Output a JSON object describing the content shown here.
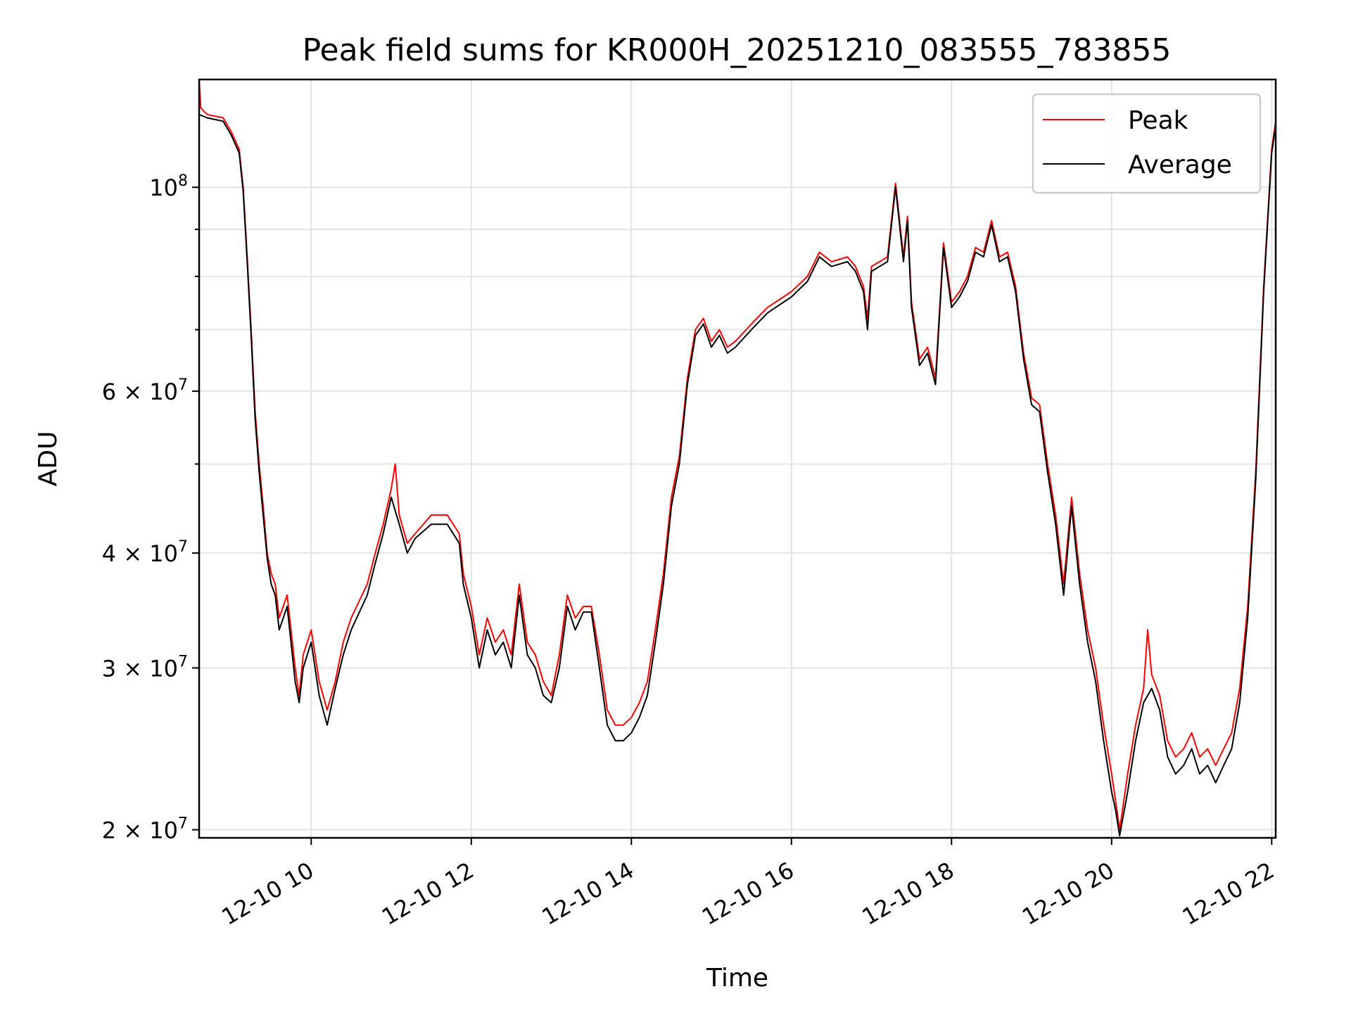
{
  "chart_data": {
    "type": "line",
    "title": "Peak field sums for KR000H_20251210_083555_783855",
    "xlabel": "Time",
    "ylabel": "ADU",
    "yscale": "log",
    "xlim": [
      8.6,
      22.05
    ],
    "ylim": [
      19600000,
      131000000
    ],
    "grid": true,
    "legend_position": "top-right",
    "x_ticks": [
      {
        "value": 10,
        "label": "12-10 10"
      },
      {
        "value": 12,
        "label": "12-10 12"
      },
      {
        "value": 14,
        "label": "12-10 14"
      },
      {
        "value": 16,
        "label": "12-10 16"
      },
      {
        "value": 18,
        "label": "12-10 18"
      },
      {
        "value": 20,
        "label": "12-10 20"
      },
      {
        "value": 22,
        "label": "12-10 22"
      }
    ],
    "y_ticks": [
      {
        "value": 100000000,
        "mantissa": "",
        "exp": "8"
      },
      {
        "value": 60000000,
        "mantissa": "6",
        "exp": "7"
      },
      {
        "value": 40000000,
        "mantissa": "4",
        "exp": "7"
      },
      {
        "value": 30000000,
        "mantissa": "3",
        "exp": "7"
      },
      {
        "value": 20000000,
        "mantissa": "2",
        "exp": "7"
      }
    ],
    "y_minor_gridlines": [
      90000000,
      80000000,
      70000000,
      50000000
    ],
    "series": [
      {
        "name": "Peak",
        "color": "#ff0000",
        "points": [
          [
            8.6,
            131000000
          ],
          [
            8.62,
            122000000
          ],
          [
            8.7,
            120000000
          ],
          [
            8.9,
            119000000
          ],
          [
            9.0,
            115000000
          ],
          [
            9.1,
            110000000
          ],
          [
            9.15,
            100000000
          ],
          [
            9.2,
            84000000
          ],
          [
            9.25,
            70000000
          ],
          [
            9.3,
            57000000
          ],
          [
            9.35,
            50000000
          ],
          [
            9.4,
            45000000
          ],
          [
            9.45,
            40000000
          ],
          [
            9.5,
            38000000
          ],
          [
            9.55,
            37000000
          ],
          [
            9.6,
            34000000
          ],
          [
            9.7,
            36000000
          ],
          [
            9.8,
            30000000
          ],
          [
            9.85,
            28000000
          ],
          [
            9.9,
            31000000
          ],
          [
            10.0,
            33000000
          ],
          [
            10.1,
            29000000
          ],
          [
            10.2,
            27000000
          ],
          [
            10.3,
            29000000
          ],
          [
            10.4,
            32000000
          ],
          [
            10.5,
            34000000
          ],
          [
            10.7,
            37000000
          ],
          [
            10.8,
            40000000
          ],
          [
            10.9,
            43000000
          ],
          [
            11.0,
            47000000
          ],
          [
            11.05,
            50000000
          ],
          [
            11.1,
            44000000
          ],
          [
            11.2,
            41000000
          ],
          [
            11.3,
            42000000
          ],
          [
            11.5,
            44000000
          ],
          [
            11.7,
            44000000
          ],
          [
            11.85,
            42000000
          ],
          [
            11.9,
            38000000
          ],
          [
            12.0,
            35000000
          ],
          [
            12.1,
            31000000
          ],
          [
            12.2,
            34000000
          ],
          [
            12.3,
            32000000
          ],
          [
            12.4,
            33000000
          ],
          [
            12.5,
            31000000
          ],
          [
            12.6,
            37000000
          ],
          [
            12.7,
            32000000
          ],
          [
            12.8,
            31000000
          ],
          [
            12.9,
            29000000
          ],
          [
            13.0,
            28000000
          ],
          [
            13.1,
            31000000
          ],
          [
            13.2,
            36000000
          ],
          [
            13.3,
            34000000
          ],
          [
            13.4,
            35000000
          ],
          [
            13.5,
            35000000
          ],
          [
            13.6,
            31000000
          ],
          [
            13.7,
            27000000
          ],
          [
            13.8,
            26000000
          ],
          [
            13.9,
            26000000
          ],
          [
            14.0,
            26500000
          ],
          [
            14.1,
            27500000
          ],
          [
            14.2,
            29000000
          ],
          [
            14.3,
            33000000
          ],
          [
            14.4,
            38000000
          ],
          [
            14.5,
            46000000
          ],
          [
            14.6,
            51000000
          ],
          [
            14.7,
            62000000
          ],
          [
            14.8,
            70000000
          ],
          [
            14.9,
            72000000
          ],
          [
            15.0,
            68000000
          ],
          [
            15.1,
            70000000
          ],
          [
            15.2,
            67000000
          ],
          [
            15.3,
            68000000
          ],
          [
            15.5,
            71000000
          ],
          [
            15.7,
            74000000
          ],
          [
            16.0,
            77000000
          ],
          [
            16.2,
            80000000
          ],
          [
            16.35,
            85000000
          ],
          [
            16.5,
            83000000
          ],
          [
            16.7,
            84000000
          ],
          [
            16.8,
            82000000
          ],
          [
            16.9,
            78000000
          ],
          [
            16.95,
            72000000
          ],
          [
            17.0,
            82000000
          ],
          [
            17.1,
            83000000
          ],
          [
            17.2,
            84000000
          ],
          [
            17.3,
            101000000
          ],
          [
            17.4,
            84000000
          ],
          [
            17.45,
            93000000
          ],
          [
            17.5,
            75000000
          ],
          [
            17.6,
            65000000
          ],
          [
            17.7,
            67000000
          ],
          [
            17.8,
            62000000
          ],
          [
            17.9,
            87000000
          ],
          [
            18.0,
            75000000
          ],
          [
            18.1,
            77000000
          ],
          [
            18.2,
            80000000
          ],
          [
            18.3,
            86000000
          ],
          [
            18.4,
            85000000
          ],
          [
            18.5,
            92000000
          ],
          [
            18.6,
            84000000
          ],
          [
            18.7,
            85000000
          ],
          [
            18.8,
            78000000
          ],
          [
            18.9,
            66000000
          ],
          [
            19.0,
            59000000
          ],
          [
            19.1,
            58000000
          ],
          [
            19.2,
            50000000
          ],
          [
            19.3,
            44000000
          ],
          [
            19.4,
            37000000
          ],
          [
            19.5,
            46000000
          ],
          [
            19.6,
            38000000
          ],
          [
            19.7,
            33000000
          ],
          [
            19.8,
            30000000
          ],
          [
            19.9,
            26000000
          ],
          [
            20.0,
            23000000
          ],
          [
            20.05,
            21500000
          ],
          [
            20.1,
            20000000
          ],
          [
            20.2,
            23000000
          ],
          [
            20.3,
            26000000
          ],
          [
            20.4,
            28500000
          ],
          [
            20.45,
            33000000
          ],
          [
            20.5,
            29500000
          ],
          [
            20.6,
            28000000
          ],
          [
            20.7,
            25000000
          ],
          [
            20.8,
            24000000
          ],
          [
            20.9,
            24500000
          ],
          [
            21.0,
            25500000
          ],
          [
            21.1,
            24000000
          ],
          [
            21.2,
            24500000
          ],
          [
            21.3,
            23500000
          ],
          [
            21.4,
            24500000
          ],
          [
            21.5,
            25500000
          ],
          [
            21.6,
            28500000
          ],
          [
            21.7,
            35000000
          ],
          [
            21.8,
            49000000
          ],
          [
            21.9,
            78000000
          ],
          [
            22.0,
            110000000
          ],
          [
            22.05,
            118000000
          ]
        ]
      },
      {
        "name": "Average",
        "color": "#000000",
        "points": [
          [
            8.6,
            120000000
          ],
          [
            8.7,
            119000000
          ],
          [
            8.9,
            118000000
          ],
          [
            9.0,
            114000000
          ],
          [
            9.1,
            109000000
          ],
          [
            9.15,
            99000000
          ],
          [
            9.2,
            83000000
          ],
          [
            9.25,
            69000000
          ],
          [
            9.3,
            56000000
          ],
          [
            9.35,
            49000000
          ],
          [
            9.4,
            44000000
          ],
          [
            9.45,
            39500000
          ],
          [
            9.5,
            37000000
          ],
          [
            9.55,
            36000000
          ],
          [
            9.6,
            33000000
          ],
          [
            9.7,
            35000000
          ],
          [
            9.8,
            29000000
          ],
          [
            9.85,
            27500000
          ],
          [
            9.9,
            30000000
          ],
          [
            10.0,
            32000000
          ],
          [
            10.1,
            28000000
          ],
          [
            10.2,
            26000000
          ],
          [
            10.3,
            28500000
          ],
          [
            10.4,
            31000000
          ],
          [
            10.5,
            33000000
          ],
          [
            10.7,
            36000000
          ],
          [
            10.8,
            39000000
          ],
          [
            10.9,
            42000000
          ],
          [
            11.0,
            46000000
          ],
          [
            11.1,
            43000000
          ],
          [
            11.2,
            40000000
          ],
          [
            11.3,
            41500000
          ],
          [
            11.5,
            43000000
          ],
          [
            11.7,
            43000000
          ],
          [
            11.85,
            41000000
          ],
          [
            11.9,
            37000000
          ],
          [
            12.0,
            34000000
          ],
          [
            12.1,
            30000000
          ],
          [
            12.2,
            33000000
          ],
          [
            12.3,
            31000000
          ],
          [
            12.4,
            32000000
          ],
          [
            12.5,
            30000000
          ],
          [
            12.6,
            36000000
          ],
          [
            12.7,
            31000000
          ],
          [
            12.8,
            30000000
          ],
          [
            12.9,
            28000000
          ],
          [
            13.0,
            27500000
          ],
          [
            13.1,
            30000000
          ],
          [
            13.2,
            35000000
          ],
          [
            13.3,
            33000000
          ],
          [
            13.4,
            34500000
          ],
          [
            13.5,
            34500000
          ],
          [
            13.6,
            30000000
          ],
          [
            13.7,
            26000000
          ],
          [
            13.8,
            25000000
          ],
          [
            13.9,
            25000000
          ],
          [
            14.0,
            25500000
          ],
          [
            14.1,
            26500000
          ],
          [
            14.2,
            28000000
          ],
          [
            14.3,
            32000000
          ],
          [
            14.4,
            37000000
          ],
          [
            14.5,
            45000000
          ],
          [
            14.6,
            50000000
          ],
          [
            14.7,
            61000000
          ],
          [
            14.8,
            69000000
          ],
          [
            14.9,
            71000000
          ],
          [
            15.0,
            67000000
          ],
          [
            15.1,
            69000000
          ],
          [
            15.2,
            66000000
          ],
          [
            15.3,
            67000000
          ],
          [
            15.5,
            70000000
          ],
          [
            15.7,
            73000000
          ],
          [
            16.0,
            76000000
          ],
          [
            16.2,
            79000000
          ],
          [
            16.35,
            84000000
          ],
          [
            16.5,
            82000000
          ],
          [
            16.7,
            83000000
          ],
          [
            16.8,
            81000000
          ],
          [
            16.9,
            77000000
          ],
          [
            16.95,
            70000000
          ],
          [
            17.0,
            81000000
          ],
          [
            17.1,
            82000000
          ],
          [
            17.2,
            83000000
          ],
          [
            17.3,
            100000000
          ],
          [
            17.4,
            83000000
          ],
          [
            17.45,
            92000000
          ],
          [
            17.5,
            74000000
          ],
          [
            17.6,
            64000000
          ],
          [
            17.7,
            66000000
          ],
          [
            17.8,
            61000000
          ],
          [
            17.9,
            86000000
          ],
          [
            18.0,
            74000000
          ],
          [
            18.1,
            76000000
          ],
          [
            18.2,
            79000000
          ],
          [
            18.3,
            85000000
          ],
          [
            18.4,
            84000000
          ],
          [
            18.5,
            91000000
          ],
          [
            18.6,
            83000000
          ],
          [
            18.7,
            84000000
          ],
          [
            18.8,
            77000000
          ],
          [
            18.9,
            65000000
          ],
          [
            19.0,
            58000000
          ],
          [
            19.1,
            57000000
          ],
          [
            19.2,
            49000000
          ],
          [
            19.3,
            43000000
          ],
          [
            19.4,
            36000000
          ],
          [
            19.5,
            45000000
          ],
          [
            19.6,
            37000000
          ],
          [
            19.7,
            32000000
          ],
          [
            19.8,
            29000000
          ],
          [
            19.9,
            25000000
          ],
          [
            20.0,
            22000000
          ],
          [
            20.05,
            21000000
          ],
          [
            20.1,
            19700000
          ],
          [
            20.2,
            22000000
          ],
          [
            20.3,
            25000000
          ],
          [
            20.4,
            27500000
          ],
          [
            20.5,
            28500000
          ],
          [
            20.6,
            27000000
          ],
          [
            20.7,
            24000000
          ],
          [
            20.8,
            23000000
          ],
          [
            20.9,
            23500000
          ],
          [
            21.0,
            24500000
          ],
          [
            21.1,
            23000000
          ],
          [
            21.2,
            23500000
          ],
          [
            21.3,
            22500000
          ],
          [
            21.4,
            23500000
          ],
          [
            21.5,
            24500000
          ],
          [
            21.6,
            27500000
          ],
          [
            21.7,
            34000000
          ],
          [
            21.8,
            48000000
          ],
          [
            21.9,
            77000000
          ],
          [
            22.0,
            109000000
          ],
          [
            22.05,
            117000000
          ]
        ]
      }
    ]
  }
}
